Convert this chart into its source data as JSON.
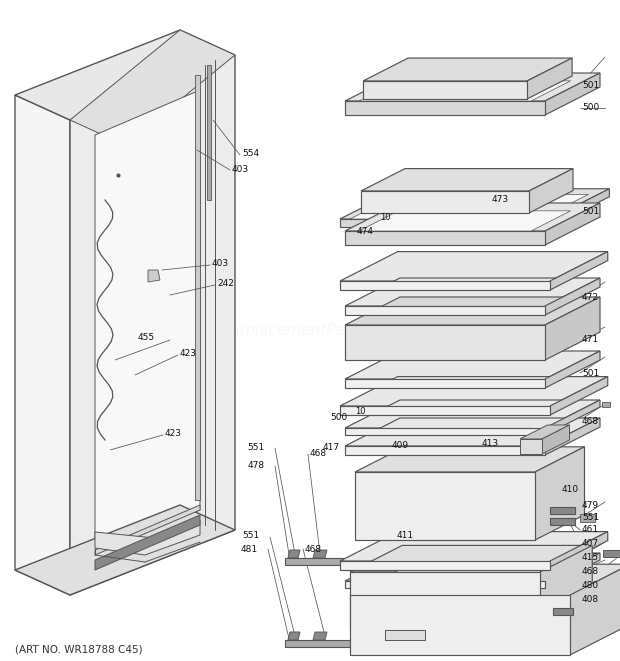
{
  "bg_color": "#ffffff",
  "line_color": "#555555",
  "label_color": "#111111",
  "fig_width": 6.2,
  "fig_height": 6.61,
  "dpi": 100,
  "watermark_text": "eReplacementParts.com",
  "watermark_alpha": 0.15,
  "footer_text": "(ART NO. WR18788 C45)",
  "footer_fontsize": 7.5
}
